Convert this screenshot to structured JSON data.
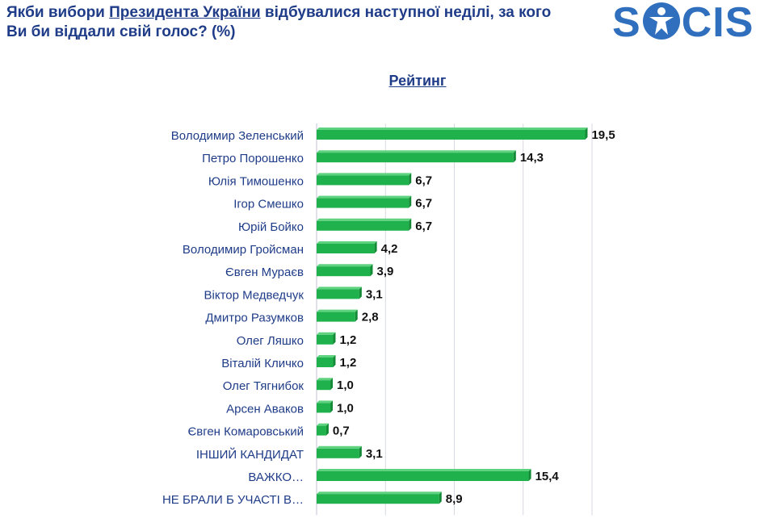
{
  "header": {
    "question_part1": "Якби вибори ",
    "question_link": "Президента України",
    "question_part2": " відбувалися наступної неділі, за кого Ви би віддали свій голос? (%)",
    "logo_text_left": "S",
    "logo_text_right": "CIS"
  },
  "colors": {
    "bar": "#1fb14b",
    "bar_dark": "#128a36",
    "title": "#1f3c88",
    "logo": "#2f6fbd"
  },
  "chart_data": {
    "type": "bar",
    "orientation": "horizontal",
    "title": "Рейтинг",
    "categories": [
      "Володимир Зеленський",
      "Петро Порошенко",
      "Юлія Тимошенко",
      "Ігор Смешко",
      "Юрій Бойко",
      "Володимир Гройсман",
      "Євген Мураєв",
      "Віктор Медведчук",
      "Дмитро Разумков",
      "Олег Ляшко",
      "Віталій Кличко",
      "Олег Тягнибок",
      "Арсен Аваков",
      "Євген Комаровський",
      "ІНШИЙ КАНДИДАТ",
      "ВАЖКО…",
      "НЕ БРАЛИ Б УЧАСТІ В…"
    ],
    "values": [
      19.5,
      14.3,
      6.7,
      6.7,
      6.7,
      4.2,
      3.9,
      3.1,
      2.8,
      1.2,
      1.2,
      1.0,
      1.0,
      0.7,
      3.1,
      15.4,
      8.9
    ],
    "value_labels": [
      "19,5",
      "14,3",
      "6,7",
      "6,7",
      "6,7",
      "4,2",
      "3,9",
      "3,1",
      "2,8",
      "1,2",
      "1,2",
      "1,0",
      "1,0",
      "0,7",
      "3,1",
      "15,4",
      "8,9"
    ],
    "xlim": [
      0,
      20
    ],
    "grid": true,
    "legend": "none"
  }
}
